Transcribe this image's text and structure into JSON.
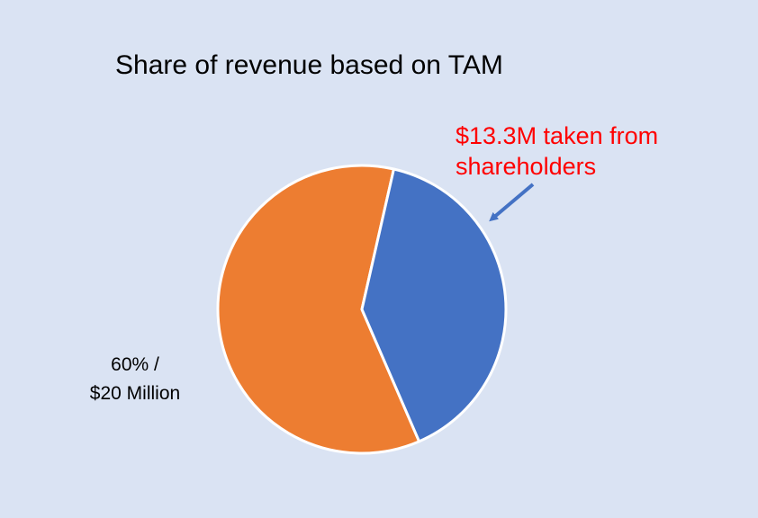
{
  "chart_data": {
    "type": "pie",
    "title": "Share of revenue based on TAM",
    "slices": [
      {
        "label_lines": [
          "60% /",
          "$20 Million"
        ],
        "value": 20,
        "percent": 60,
        "color": "#ed7d31"
      },
      {
        "label_lines": [
          "$13.3M taken from",
          "shareholders"
        ],
        "value": 13.3,
        "percent": 40,
        "color": "#4472c4",
        "label_color": "#ff0000",
        "arrow": true
      }
    ],
    "legend": "none"
  }
}
